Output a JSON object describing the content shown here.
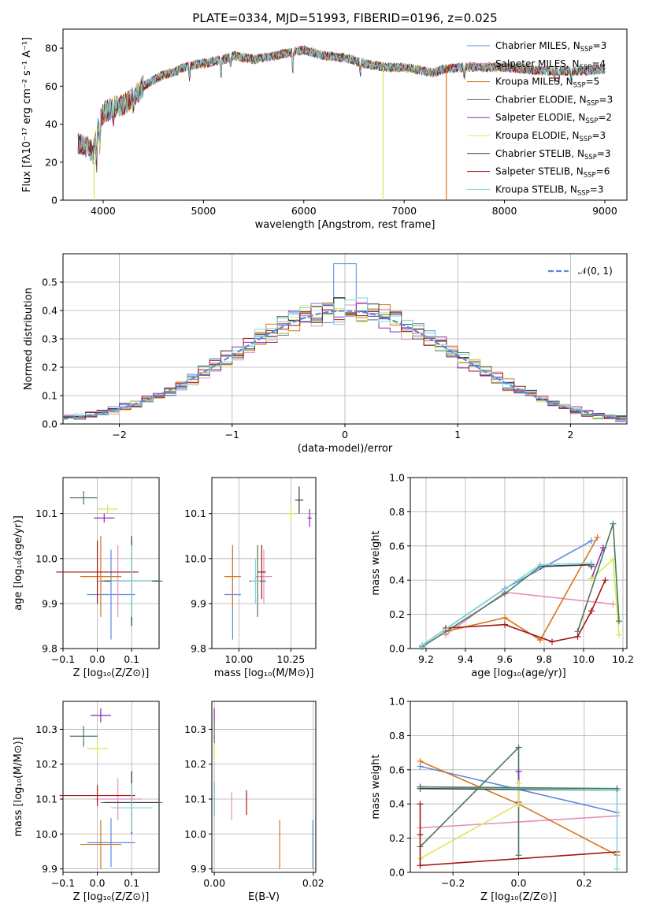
{
  "colors": {
    "Chabrier MILES": "#5b8bdb",
    "Salpeter MILES": "#e58fc0",
    "Kroupa MILES": "#d8741e",
    "Chabrier ELODIE": "#4a7a5a",
    "Salpeter ELODIE": "#8a2bb5",
    "Kroupa ELODIE": "#d7e85a",
    "Chabrier STELIB": "#3a3a3a",
    "Salpeter STELIB": "#a51616",
    "Kroupa STELIB": "#7fd6dc",
    "normal": "#5b8bdb"
  },
  "chart_data": [
    {
      "id": "spectrum",
      "type": "line",
      "title": "PLATE=0334, MJD=51993, FIBERID=0196, z=0.025",
      "xlabel": "wavelength [Angstrom, rest frame]",
      "ylabel": "Flux [fλ10⁻¹⁷ erg cm⁻² s⁻¹ A⁻¹]",
      "xlim": [
        3600,
        9220
      ],
      "ylim": [
        0,
        90
      ],
      "xticks": [
        "4000",
        "5000",
        "6000",
        "7000",
        "8000",
        "9000"
      ],
      "yticks": [
        "0",
        "20",
        "40",
        "60",
        "80"
      ],
      "legend_position": "top-right",
      "legend": [
        {
          "name": "Chabrier MILES",
          "sub": "3"
        },
        {
          "name": "Salpeter MILES",
          "sub": "4"
        },
        {
          "name": "Kroupa MILES",
          "sub": "5"
        },
        {
          "name": "Chabrier ELODIE",
          "sub": "3"
        },
        {
          "name": "Salpeter ELODIE",
          "sub": "2"
        },
        {
          "name": "Kroupa ELODIE",
          "sub": "3"
        },
        {
          "name": "Chabrier STELIB",
          "sub": "3"
        },
        {
          "name": "Salpeter STELIB",
          "sub": "6"
        },
        {
          "name": "Kroupa STELIB",
          "sub": "3"
        }
      ],
      "continuum_x": [
        3750,
        3850,
        3900,
        3950,
        4000,
        4100,
        4200,
        4300,
        4400,
        4500,
        4600,
        4700,
        4800,
        4900,
        5000,
        5100,
        5200,
        5300,
        5400,
        5500,
        5600,
        5800,
        6000,
        6200,
        6400,
        6600,
        6800,
        7000,
        7200,
        7300,
        7400,
        7600,
        7800,
        8000,
        8200,
        8400,
        8600,
        8800,
        9000
      ],
      "continuum_y": [
        30,
        28,
        25,
        38,
        46,
        49,
        50,
        54,
        60,
        63,
        66,
        67,
        70,
        71,
        72,
        73,
        74,
        76,
        75,
        74,
        75,
        77,
        79,
        76,
        75,
        72,
        70,
        70,
        68,
        67,
        69,
        70,
        70,
        70,
        69,
        68,
        68,
        68,
        69
      ],
      "dropouts": [
        {
          "name": "Kroupa ELODIE",
          "x": 3910
        },
        {
          "name": "Kroupa ELODIE",
          "x": 6790
        },
        {
          "name": "Kroupa MILES",
          "x": 7420
        }
      ]
    },
    {
      "id": "residuals",
      "type": "histogram",
      "xlabel": "(data-model)/error",
      "ylabel": "Normed distribution",
      "xlim": [
        -2.5,
        2.5
      ],
      "ylim": [
        0,
        0.6
      ],
      "xticks": [
        "−2",
        "−1",
        "0",
        "1",
        "2"
      ],
      "yticks": [
        "0.0",
        "0.1",
        "0.2",
        "0.3",
        "0.4",
        "0.5"
      ],
      "legend_position": "top-right",
      "legend_label": "𝒩(0, 1)",
      "bin_width": 0.1,
      "grid": true
    },
    {
      "id": "age-vs-z",
      "type": "scatter",
      "xlabel": "Z [log₁₀(Z/Z⊙)]",
      "ylabel": "age  [log₁₀(age/yr)]",
      "xlim": [
        -0.1,
        0.18
      ],
      "ylim": [
        9.8,
        10.18
      ],
      "xticks": [
        "−0.1",
        "0.0",
        "0.1"
      ],
      "yticks": [
        "9.8",
        "9.9",
        "10.0",
        "10.1"
      ],
      "points": [
        {
          "name": "Chabrier MILES",
          "x": 0.04,
          "y": 9.92,
          "xerr": 0.07,
          "yerr": 0.1
        },
        {
          "name": "Salpeter MILES",
          "x": 0.06,
          "y": 9.95,
          "xerr": 0.06,
          "yerr": 0.08
        },
        {
          "name": "Kroupa MILES",
          "x": 0.01,
          "y": 9.96,
          "xerr": 0.06,
          "yerr": 0.09
        },
        {
          "name": "Chabrier ELODIE",
          "x": 0.1,
          "y": 9.95,
          "xerr": 0.09,
          "yerr": 0.09
        },
        {
          "name": "Salpeter ELODIE",
          "x": 0.02,
          "y": 10.09,
          "xerr": 0.03,
          "yerr": 0.01
        },
        {
          "name": "Kroupa ELODIE",
          "x": 0.03,
          "y": 10.11,
          "xerr": 0.03,
          "yerr": 0.01
        },
        {
          "name": "Chabrier STELIB",
          "x": 0.1,
          "y": 9.95,
          "xerr": 0.08,
          "yerr": 0.1
        },
        {
          "name": "Salpeter STELIB",
          "x": 0.0,
          "y": 9.97,
          "xerr": 0.12,
          "yerr": 0.07
        },
        {
          "name": "Kroupa STELIB",
          "x": 0.1,
          "y": 9.95,
          "xerr": 0.06,
          "yerr": 0.08
        },
        {
          "name": "Chabrier ELODIE",
          "x": -0.04,
          "y": 10.135,
          "xerr": 0.04,
          "yerr": 0.015
        }
      ]
    },
    {
      "id": "age-vs-mass",
      "type": "scatter",
      "xlabel": "mass [log₁₀(M/M⊙)]",
      "xlim": [
        9.87,
        10.37
      ],
      "ylim": [
        9.8,
        10.18
      ],
      "xticks": [
        "10.00",
        "10.25"
      ],
      "yticks": [
        "9.8",
        "9.9",
        "10.0",
        "10.1"
      ],
      "points": [
        {
          "name": "Chabrier MILES",
          "x": 9.97,
          "y": 9.92,
          "xerr": 0.04,
          "yerr": 0.1
        },
        {
          "name": "Salpeter MILES",
          "x": 10.12,
          "y": 9.96,
          "xerr": 0.04,
          "yerr": 0.06
        },
        {
          "name": "Kroupa MILES",
          "x": 9.97,
          "y": 9.96,
          "xerr": 0.04,
          "yerr": 0.07
        },
        {
          "name": "Chabrier ELODIE",
          "x": 10.09,
          "y": 9.95,
          "xerr": 0.04,
          "yerr": 0.08
        },
        {
          "name": "Salpeter ELODIE",
          "x": 10.34,
          "y": 10.09,
          "xerr": 0.01,
          "yerr": 0.02
        },
        {
          "name": "Kroupa ELODIE",
          "x": 10.25,
          "y": 10.1,
          "xerr": 0.02,
          "yerr": 0.02
        },
        {
          "name": "Chabrier STELIB",
          "x": 10.29,
          "y": 10.13,
          "xerr": 0.02,
          "yerr": 0.03
        },
        {
          "name": "Salpeter STELIB",
          "x": 10.11,
          "y": 9.97,
          "xerr": 0.02,
          "yerr": 0.06
        },
        {
          "name": "Kroupa STELIB",
          "x": 10.08,
          "y": 9.95,
          "xerr": 0.02,
          "yerr": 0.05
        }
      ]
    },
    {
      "id": "weight-vs-age",
      "type": "line",
      "xlabel": "age  [log₁₀(age/yr)]",
      "ylabel": "mass weight",
      "xlim": [
        9.12,
        10.22
      ],
      "ylim": [
        0,
        1
      ],
      "xticks": [
        "9.2",
        "9.4",
        "9.6",
        "9.8",
        "10.0",
        "10.2"
      ],
      "yticks": [
        "0.0",
        "0.2",
        "0.4",
        "0.6",
        "0.8",
        "1.0"
      ],
      "grid": true,
      "series": [
        {
          "name": "Chabrier MILES",
          "x": [
            9.18,
            9.6,
            10.04
          ],
          "y": [
            0.02,
            0.35,
            0.63
          ]
        },
        {
          "name": "Salpeter MILES",
          "x": [
            9.3,
            9.6,
            10.15
          ],
          "y": [
            0.08,
            0.33,
            0.26
          ]
        },
        {
          "name": "Kroupa MILES",
          "x": [
            9.3,
            9.6,
            9.78,
            10.07
          ],
          "y": [
            0.1,
            0.18,
            0.05,
            0.65
          ]
        },
        {
          "name": "Chabrier ELODIE",
          "x": [
            9.18,
            9.6,
            9.78,
            10.04
          ],
          "y": [
            0.01,
            0.32,
            0.48,
            0.49
          ]
        },
        {
          "name": "Salpeter ELODIE",
          "x": [
            10.04,
            10.1
          ],
          "y": [
            0.41,
            0.59
          ]
        },
        {
          "name": "Kroupa ELODIE",
          "x": [
            10.04,
            10.15,
            10.18
          ],
          "y": [
            0.41,
            0.52,
            0.08
          ]
        },
        {
          "name": "Chabrier STELIB",
          "x": [
            9.78,
            10.04,
            10.04
          ],
          "y": [
            0.48,
            0.49,
            0.48
          ]
        },
        {
          "name": "Salpeter STELIB",
          "x": [
            9.3,
            9.6,
            9.84,
            9.97,
            10.04,
            10.11
          ],
          "y": [
            0.12,
            0.14,
            0.04,
            0.07,
            0.22,
            0.4
          ]
        },
        {
          "name": "Kroupa STELIB",
          "x": [
            9.18,
            9.78,
            10.04
          ],
          "y": [
            0.02,
            0.49,
            0.5
          ]
        },
        {
          "name": "Chabrier ELODIE",
          "x": [
            9.97,
            10.15,
            10.18
          ],
          "y": [
            0.1,
            0.73,
            0.16
          ]
        }
      ]
    },
    {
      "id": "mass-vs-z",
      "type": "scatter",
      "xlabel": "Z [log₁₀(Z/Z⊙)]",
      "ylabel": "mass [log₁₀(M/M⊙)]",
      "xlim": [
        -0.1,
        0.18
      ],
      "ylim": [
        9.89,
        10.38
      ],
      "xticks": [
        "−0.1",
        "0.0",
        "0.1"
      ],
      "yticks": [
        "9.9",
        "10.0",
        "10.1",
        "10.2",
        "10.3"
      ],
      "points": [
        {
          "name": "Chabrier MILES",
          "x": 0.04,
          "y": 9.975,
          "xerr": 0.07,
          "yerr": 0.07
        },
        {
          "name": "Salpeter MILES",
          "x": 0.06,
          "y": 10.1,
          "xerr": 0.07,
          "yerr": 0.06
        },
        {
          "name": "Kroupa MILES",
          "x": 0.01,
          "y": 9.97,
          "xerr": 0.06,
          "yerr": 0.07
        },
        {
          "name": "Chabrier ELODIE",
          "x": 0.1,
          "y": 10.09,
          "xerr": 0.09,
          "yerr": 0.09
        },
        {
          "name": "Salpeter ELODIE",
          "x": 0.01,
          "y": 10.34,
          "xerr": 0.03,
          "yerr": 0.02
        },
        {
          "name": "Kroupa ELODIE",
          "x": 0.0,
          "y": 10.245,
          "xerr": 0.03,
          "yerr": 0.02
        },
        {
          "name": "Chabrier STELIB",
          "x": 0.1,
          "y": 10.09,
          "xerr": 0.08,
          "yerr": 0.09
        },
        {
          "name": "Salpeter STELIB",
          "x": 0.0,
          "y": 10.11,
          "xerr": 0.11,
          "yerr": 0.03
        },
        {
          "name": "Kroupa STELIB",
          "x": 0.1,
          "y": 10.075,
          "xerr": 0.06,
          "yerr": 0.07
        },
        {
          "name": "Chabrier ELODIE",
          "x": -0.04,
          "y": 10.28,
          "xerr": 0.04,
          "yerr": 0.03
        }
      ]
    },
    {
      "id": "mass-vs-ebv",
      "type": "scatter",
      "xlabel": "E(B-V)",
      "xlim": [
        -0.0005,
        0.0205
      ],
      "ylim": [
        9.89,
        10.38
      ],
      "xticks": [
        "0.00",
        "0.02"
      ],
      "yticks": [
        "9.9",
        "10.0",
        "10.1",
        "10.2",
        "10.3"
      ],
      "points": [
        {
          "name": "Chabrier MILES",
          "x": 0.0199,
          "y": 9.97,
          "yerr": 0.07
        },
        {
          "name": "Salpeter MILES",
          "x": 0.0035,
          "y": 10.08,
          "yerr": 0.04
        },
        {
          "name": "Kroupa MILES",
          "x": 0.0132,
          "y": 9.97,
          "yerr": 0.07
        },
        {
          "name": "Chabrier ELODIE",
          "x": 0.0,
          "y": 10.29,
          "yerr": 0.03
        },
        {
          "name": "Salpeter ELODIE",
          "x": 0.0,
          "y": 10.34,
          "yerr": 0.02
        },
        {
          "name": "Kroupa ELODIE",
          "x": 0.0,
          "y": 10.24,
          "yerr": 0.02
        },
        {
          "name": "Chabrier STELIB",
          "x": 0.0,
          "y": 10.1,
          "yerr": 0.05
        },
        {
          "name": "Salpeter STELIB",
          "x": 0.0065,
          "y": 10.09,
          "yerr": 0.035
        },
        {
          "name": "Kroupa STELIB",
          "x": 0.0,
          "y": 10.1,
          "yerr": 0.05
        }
      ]
    },
    {
      "id": "weight-vs-z",
      "type": "line",
      "xlabel": "Z [log₁₀(Z/Z⊙)]",
      "ylabel": "mass weight",
      "xlim": [
        -0.33,
        0.33
      ],
      "ylim": [
        0,
        1
      ],
      "xticks": [
        "−0.2",
        "0.0",
        "0.2"
      ],
      "yticks": [
        "0.0",
        "0.2",
        "0.4",
        "0.6",
        "0.8",
        "1.0"
      ],
      "grid": true,
      "series": [
        {
          "name": "Chabrier MILES",
          "x": [
            -0.3,
            0.3
          ],
          "y": [
            0.62,
            0.35
          ]
        },
        {
          "name": "Salpeter MILES",
          "x": [
            -0.3,
            0.3
          ],
          "y": [
            0.26,
            0.33
          ]
        },
        {
          "name": "Kroupa MILES",
          "x": [
            -0.3,
            0.0,
            0.3
          ],
          "y": [
            0.65,
            0.4,
            0.1
          ]
        },
        {
          "name": "Chabrier ELODIE",
          "x": [
            -0.3,
            0.0,
            0.0
          ],
          "y": [
            0.15,
            0.73,
            0.1
          ]
        },
        {
          "name": "Salpeter ELODIE",
          "x": [
            0.0,
            0.0
          ],
          "y": [
            0.41,
            0.59
          ]
        },
        {
          "name": "Kroupa ELODIE",
          "x": [
            -0.3,
            0.0,
            0.0
          ],
          "y": [
            0.08,
            0.4,
            0.52
          ]
        },
        {
          "name": "Chabrier STELIB",
          "x": [
            -0.3,
            0.3
          ],
          "y": [
            0.49,
            0.48
          ]
        },
        {
          "name": "Salpeter STELIB",
          "x": [
            -0.3,
            -0.3,
            -0.3,
            0.3
          ],
          "y": [
            0.4,
            0.22,
            0.04,
            0.12
          ]
        },
        {
          "name": "Kroupa STELIB",
          "x": [
            -0.3,
            0.3,
            0.3
          ],
          "y": [
            0.5,
            0.48,
            0.02
          ]
        },
        {
          "name": "Chabrier ELODIE",
          "x": [
            -0.3,
            0.3
          ],
          "y": [
            0.5,
            0.49
          ]
        }
      ]
    }
  ]
}
